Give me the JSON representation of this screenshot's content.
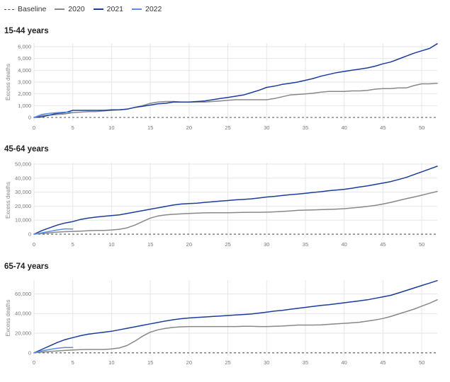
{
  "legend": {
    "items": [
      {
        "key": "baseline",
        "label": "Baseline"
      },
      {
        "key": "y2020",
        "label": "2020"
      },
      {
        "key": "y2021",
        "label": "2021"
      },
      {
        "key": "y2022",
        "label": "2022"
      }
    ]
  },
  "colors": {
    "baseline": "#555555",
    "y2020": "#888888",
    "y2021": "#1a3d99",
    "y2022": "#5b8ee6",
    "grid": "#e6e6e6"
  },
  "chart_data": [
    {
      "type": "line",
      "title": "15-44 years",
      "ylabel": "Excess deaths",
      "xlim": [
        0,
        52
      ],
      "ylim": [
        -300,
        6300
      ],
      "xticks": [
        0,
        5,
        10,
        15,
        20,
        25,
        30,
        35,
        40,
        45,
        50
      ],
      "yticks": [
        0,
        1000,
        2000,
        3000,
        4000,
        5000,
        6000
      ],
      "ytick_labels": [
        "0",
        "1,000",
        "2,000",
        "3,000",
        "4,000",
        "5,000",
        "6,000"
      ],
      "baseline": 0,
      "grid": true,
      "series": [
        {
          "name": "2020",
          "x": [
            0,
            1,
            2,
            3,
            4,
            5,
            6,
            7,
            8,
            9,
            10,
            11,
            12,
            13,
            14,
            15,
            16,
            17,
            18,
            19,
            20,
            21,
            22,
            23,
            24,
            25,
            26,
            27,
            28,
            29,
            30,
            31,
            32,
            33,
            34,
            35,
            36,
            37,
            38,
            39,
            40,
            41,
            42,
            43,
            44,
            45,
            46,
            47,
            48,
            49,
            50,
            51,
            52
          ],
          "y": [
            0,
            150,
            200,
            250,
            300,
            400,
            450,
            500,
            500,
            550,
            600,
            650,
            700,
            850,
            1000,
            1200,
            1300,
            1350,
            1350,
            1300,
            1300,
            1300,
            1300,
            1350,
            1400,
            1450,
            1500,
            1500,
            1500,
            1500,
            1500,
            1600,
            1750,
            1900,
            1950,
            2000,
            2050,
            2150,
            2200,
            2200,
            2200,
            2250,
            2250,
            2300,
            2400,
            2450,
            2450,
            2500,
            2500,
            2700,
            2850,
            2850,
            2900
          ]
        },
        {
          "name": "2021",
          "x": [
            0,
            1,
            2,
            3,
            4,
            5,
            6,
            7,
            8,
            9,
            10,
            11,
            12,
            13,
            14,
            15,
            16,
            17,
            18,
            19,
            20,
            21,
            22,
            23,
            24,
            25,
            26,
            27,
            28,
            29,
            30,
            31,
            32,
            33,
            34,
            35,
            36,
            37,
            38,
            39,
            40,
            41,
            42,
            43,
            44,
            45,
            46,
            47,
            48,
            49,
            50,
            51,
            52
          ],
          "y": [
            0,
            50,
            200,
            350,
            400,
            600,
            600,
            600,
            600,
            600,
            650,
            650,
            700,
            850,
            950,
            1050,
            1150,
            1200,
            1300,
            1300,
            1300,
            1350,
            1400,
            1500,
            1600,
            1700,
            1800,
            1900,
            2100,
            2300,
            2550,
            2650,
            2800,
            2900,
            3000,
            3150,
            3300,
            3500,
            3650,
            3800,
            3900,
            4000,
            4100,
            4200,
            4350,
            4550,
            4700,
            4950,
            5200,
            5450,
            5650,
            5850,
            6250
          ]
        },
        {
          "name": "2022",
          "x": [
            0,
            1,
            2,
            3,
            4,
            5
          ],
          "y": [
            0,
            250,
            350,
            400,
            450,
            400
          ]
        }
      ]
    },
    {
      "type": "line",
      "title": "45-64 years",
      "ylabel": "Excess deaths",
      "xlim": [
        0,
        52
      ],
      "ylim": [
        -2500,
        51000
      ],
      "xticks": [
        0,
        5,
        10,
        15,
        20,
        25,
        30,
        35,
        40,
        45,
        50
      ],
      "yticks": [
        0,
        10000,
        20000,
        30000,
        40000,
        50000
      ],
      "ytick_labels": [
        "0",
        "10,000",
        "20,000",
        "30,000",
        "40,000",
        "50,000"
      ],
      "baseline": 0,
      "grid": true,
      "series": [
        {
          "name": "2020",
          "x": [
            0,
            1,
            2,
            3,
            4,
            5,
            6,
            7,
            8,
            9,
            10,
            11,
            12,
            13,
            14,
            15,
            16,
            17,
            18,
            19,
            20,
            21,
            22,
            23,
            24,
            25,
            26,
            27,
            28,
            29,
            30,
            31,
            32,
            33,
            34,
            35,
            36,
            37,
            38,
            39,
            40,
            41,
            42,
            43,
            44,
            45,
            46,
            47,
            48,
            49,
            50,
            51,
            52
          ],
          "y": [
            0,
            500,
            1000,
            1500,
            1800,
            2000,
            2200,
            2500,
            2700,
            2700,
            3000,
            3500,
            4500,
            6500,
            9000,
            11500,
            13000,
            13800,
            14200,
            14500,
            14800,
            15000,
            15200,
            15300,
            15300,
            15300,
            15400,
            15500,
            15600,
            15600,
            15700,
            15900,
            16200,
            16600,
            17000,
            17200,
            17300,
            17500,
            17700,
            17900,
            18200,
            18700,
            19200,
            19800,
            20500,
            21500,
            22700,
            24000,
            25300,
            26500,
            27800,
            29200,
            30500
          ]
        },
        {
          "name": "2021",
          "x": [
            0,
            1,
            2,
            3,
            4,
            5,
            6,
            7,
            8,
            9,
            10,
            11,
            12,
            13,
            14,
            15,
            16,
            17,
            18,
            19,
            20,
            21,
            22,
            23,
            24,
            25,
            26,
            27,
            28,
            29,
            30,
            31,
            32,
            33,
            34,
            35,
            36,
            37,
            38,
            39,
            40,
            41,
            42,
            43,
            44,
            45,
            46,
            47,
            48,
            49,
            50,
            51,
            52
          ],
          "y": [
            0,
            2500,
            4500,
            6500,
            8000,
            9000,
            10500,
            11500,
            12200,
            12800,
            13300,
            13800,
            14800,
            15800,
            16800,
            17800,
            18800,
            19800,
            20800,
            21500,
            21900,
            22100,
            22700,
            23100,
            23600,
            24000,
            24500,
            24800,
            25200,
            25800,
            26500,
            27000,
            27600,
            28200,
            28600,
            29200,
            29800,
            30300,
            31000,
            31500,
            32000,
            32800,
            33700,
            34500,
            35500,
            36500,
            37500,
            39000,
            40500,
            42500,
            44500,
            46500,
            48500
          ]
        },
        {
          "name": "2022",
          "x": [
            0,
            1,
            2,
            3,
            4,
            5
          ],
          "y": [
            0,
            1000,
            2000,
            3000,
            3800,
            3700
          ]
        }
      ]
    },
    {
      "type": "line",
      "title": "65-74 years",
      "ylabel": "Excess deaths",
      "xlim": [
        0,
        52
      ],
      "ylim": [
        -3000,
        74000
      ],
      "xticks": [
        0,
        5,
        10,
        15,
        20,
        25,
        30,
        35,
        40,
        45,
        50
      ],
      "yticks": [
        0,
        20000,
        40000,
        60000
      ],
      "ytick_labels": [
        "0",
        "20,000",
        "40,000",
        "60,000"
      ],
      "baseline": 0,
      "grid": true,
      "series": [
        {
          "name": "2020",
          "x": [
            0,
            1,
            2,
            3,
            4,
            5,
            6,
            7,
            8,
            9,
            10,
            11,
            12,
            13,
            14,
            15,
            16,
            17,
            18,
            19,
            20,
            21,
            22,
            23,
            24,
            25,
            26,
            27,
            28,
            29,
            30,
            31,
            32,
            33,
            34,
            35,
            36,
            37,
            38,
            39,
            40,
            41,
            42,
            43,
            44,
            45,
            46,
            47,
            48,
            49,
            50,
            51,
            52
          ],
          "y": [
            0,
            800,
            1500,
            2000,
            2500,
            3000,
            3300,
            3500,
            3500,
            3500,
            4000,
            5000,
            7500,
            12000,
            17000,
            21000,
            23500,
            25000,
            26000,
            26500,
            26800,
            26800,
            26800,
            26800,
            26800,
            26800,
            26800,
            27000,
            27000,
            26800,
            26800,
            27000,
            27300,
            27800,
            28300,
            28300,
            28300,
            28500,
            29000,
            29500,
            30000,
            30500,
            31200,
            32300,
            33500,
            35000,
            37000,
            39500,
            42000,
            44500,
            47500,
            50500,
            54000
          ]
        },
        {
          "name": "2021",
          "x": [
            0,
            1,
            2,
            3,
            4,
            5,
            6,
            7,
            8,
            9,
            10,
            11,
            12,
            13,
            14,
            15,
            16,
            17,
            18,
            19,
            20,
            21,
            22,
            23,
            24,
            25,
            26,
            27,
            28,
            29,
            30,
            31,
            32,
            33,
            34,
            35,
            36,
            37,
            38,
            39,
            40,
            41,
            42,
            43,
            44,
            45,
            46,
            47,
            48,
            49,
            50,
            51,
            52
          ],
          "y": [
            0,
            3500,
            7000,
            10500,
            13500,
            15500,
            17500,
            19000,
            20000,
            21000,
            22000,
            23500,
            25000,
            26500,
            28000,
            29500,
            31000,
            32500,
            33800,
            34800,
            35500,
            36000,
            36500,
            37000,
            37500,
            38000,
            38500,
            39000,
            39500,
            40500,
            41500,
            42500,
            43300,
            44300,
            45300,
            46300,
            47300,
            48300,
            49000,
            50000,
            51000,
            52000,
            53000,
            54000,
            55500,
            57000,
            58500,
            61000,
            63500,
            66000,
            68500,
            71000,
            73500
          ]
        },
        {
          "name": "2022",
          "x": [
            0,
            1,
            2,
            3,
            4,
            5
          ],
          "y": [
            0,
            2000,
            3500,
            4800,
            5500,
            5500
          ]
        }
      ]
    }
  ]
}
